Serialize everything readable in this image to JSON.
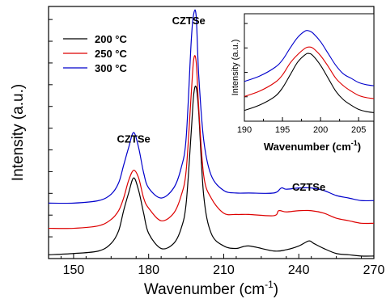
{
  "chart_data": [
    {
      "type": "line",
      "title": "",
      "xlabel": "Wavenumber (cm",
      "xlabel_sup": "-1",
      "xlabel_close": ")",
      "ylabel": "Intensity (a.u.)",
      "xlim": [
        140,
        270
      ],
      "ylim": [
        0,
        100
      ],
      "x_ticks": [
        "150",
        "180",
        "210",
        "240",
        "270"
      ],
      "y_ticks_labeled": false,
      "legend_position": "top-left",
      "annotations": [
        {
          "text": "CZTSe",
          "x": 174,
          "y": 46
        },
        {
          "text": "CZTSe",
          "x": 196,
          "y": 93
        },
        {
          "text": "CZTSe",
          "x": 244,
          "y": 27
        }
      ],
      "series": [
        {
          "name": "200 °C",
          "color": "#000000",
          "x": [
            140,
            150,
            160,
            165,
            168,
            170,
            172,
            174,
            176,
            178,
            180,
            185,
            190,
            193,
            195,
            197,
            198,
            199,
            200,
            202,
            205,
            210,
            215,
            220,
            230,
            235,
            240,
            244,
            246,
            250,
            255,
            260,
            265,
            270
          ],
          "y": [
            1.5,
            2,
            3,
            6,
            11,
            19,
            26,
            32,
            27,
            18,
            10,
            4,
            6,
            12,
            22,
            50,
            65,
            68,
            58,
            25,
            10,
            5,
            4,
            5,
            3,
            3.5,
            5,
            7,
            6,
            4,
            2,
            1.5,
            1,
            1
          ]
        },
        {
          "name": "250 °C",
          "color": "#dd0000",
          "x": [
            140,
            150,
            160,
            165,
            168,
            170,
            172,
            174,
            176,
            178,
            180,
            185,
            190,
            193,
            195,
            197,
            198,
            199,
            200,
            202,
            205,
            210,
            215,
            220,
            230,
            232,
            235,
            240,
            245,
            250,
            255,
            260,
            265,
            270
          ],
          "y": [
            12,
            12,
            13,
            15.5,
            19,
            24,
            31,
            35,
            32,
            24,
            20,
            15,
            18,
            25,
            35,
            65,
            79,
            78,
            60,
            33,
            24,
            18,
            17.5,
            17.5,
            17,
            19,
            18.5,
            19,
            19,
            18,
            16,
            15,
            14,
            14
          ]
        },
        {
          "name": "300 °C",
          "color": "#0000cc",
          "x": [
            140,
            150,
            160,
            165,
            168,
            170,
            172,
            174,
            176,
            178,
            180,
            185,
            190,
            193,
            195,
            197,
            198,
            199,
            200,
            202,
            205,
            210,
            215,
            220,
            230,
            233,
            235,
            240,
            245,
            250,
            255,
            260,
            265,
            270
          ],
          "y": [
            22,
            22,
            23,
            25.5,
            30,
            37,
            44,
            50,
            44,
            34,
            28,
            24,
            28,
            36,
            48,
            86,
            97,
            96,
            73,
            47,
            33,
            27,
            26,
            26,
            26,
            28,
            27.5,
            28,
            28,
            27,
            25,
            24,
            23,
            23
          ]
        }
      ]
    },
    {
      "type": "line",
      "title": "",
      "xlabel": "Wavenumber (cm",
      "xlabel_sup": "-1",
      "xlabel_close": ")",
      "ylabel": "Intensity (a.u.)",
      "xlim": [
        190,
        207
      ],
      "ylim": [
        0,
        100
      ],
      "x_ticks": [
        "190",
        "195",
        "200",
        "205"
      ],
      "series": [
        {
          "name": "200 °C",
          "color": "#000000",
          "x": [
            190,
            192,
            194,
            195,
            196,
            197,
            198,
            198.5,
            199,
            200,
            201,
            202,
            203,
            204,
            205,
            206,
            207
          ],
          "y": [
            10,
            15,
            23,
            31,
            43,
            55,
            62,
            63,
            61,
            52,
            40,
            28,
            20,
            15,
            11,
            9,
            8
          ]
        },
        {
          "name": "250 °C",
          "color": "#dd0000",
          "x": [
            190,
            192,
            194,
            195,
            196,
            197,
            198,
            198.5,
            199,
            200,
            201,
            202,
            203,
            204,
            205,
            206,
            207
          ],
          "y": [
            23,
            28,
            36,
            43,
            54,
            62,
            68,
            69,
            68,
            61,
            51,
            40,
            33,
            28,
            24,
            22,
            21
          ]
        },
        {
          "name": "300 °C",
          "color": "#0000cc",
          "x": [
            190,
            192,
            194,
            195,
            196,
            197,
            198,
            198.5,
            199,
            200,
            201,
            202,
            203,
            204,
            205,
            206,
            207
          ],
          "y": [
            37,
            42,
            50,
            57,
            68,
            78,
            84,
            84,
            82,
            74,
            63,
            52,
            44,
            40,
            36,
            34,
            33
          ]
        }
      ]
    }
  ]
}
